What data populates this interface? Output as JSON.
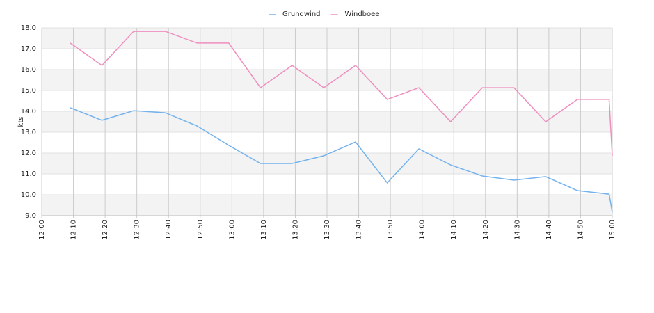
{
  "chart_data": {
    "type": "line",
    "y_label": "kts",
    "x": [
      "12:09",
      "12:19",
      "12:29",
      "12:39",
      "12:49",
      "12:59",
      "13:09",
      "13:19",
      "13:29",
      "13:39",
      "13:49",
      "13:59",
      "14:09",
      "14:19",
      "14:29",
      "14:39",
      "14:49",
      "14:59",
      "15:00"
    ],
    "series": [
      {
        "name": "Grundwind",
        "color": "#74b2ee",
        "values": [
          14.17,
          13.57,
          14.03,
          13.93,
          13.3,
          12.37,
          11.5,
          11.5,
          11.87,
          12.53,
          10.57,
          12.2,
          11.43,
          10.9,
          10.7,
          10.87,
          10.2,
          10.03,
          9.17
        ]
      },
      {
        "name": "Windboee",
        "color": "#ef8fbf",
        "values": [
          17.27,
          16.2,
          17.83,
          17.83,
          17.27,
          17.27,
          15.13,
          16.2,
          15.13,
          16.2,
          14.57,
          15.13,
          13.5,
          15.13,
          15.13,
          13.5,
          14.57,
          14.57,
          11.87
        ]
      }
    ],
    "xlim": [
      "12:00",
      "15:00"
    ],
    "xticks": [
      "12:00",
      "12:10",
      "12:20",
      "12:30",
      "12:40",
      "12:50",
      "13:00",
      "13:10",
      "13:20",
      "13:30",
      "13:40",
      "13:50",
      "14:00",
      "14:10",
      "14:20",
      "14:30",
      "14:40",
      "14:50",
      "15:00"
    ],
    "ylim": [
      9,
      18
    ],
    "yticks": [
      {
        "value": 9,
        "label": "9.0"
      },
      {
        "value": 10,
        "label": "10.0"
      },
      {
        "value": 11,
        "label": "11.0"
      },
      {
        "value": 12,
        "label": "12.0"
      },
      {
        "value": 13,
        "label": "13.0"
      },
      {
        "value": 14,
        "label": "14.0"
      },
      {
        "value": 15,
        "label": "15.0"
      },
      {
        "value": 16,
        "label": "16.0"
      },
      {
        "value": 17,
        "label": "17.0"
      },
      {
        "value": 18,
        "label": "18.0"
      }
    ],
    "grid": true,
    "legend": "top"
  }
}
